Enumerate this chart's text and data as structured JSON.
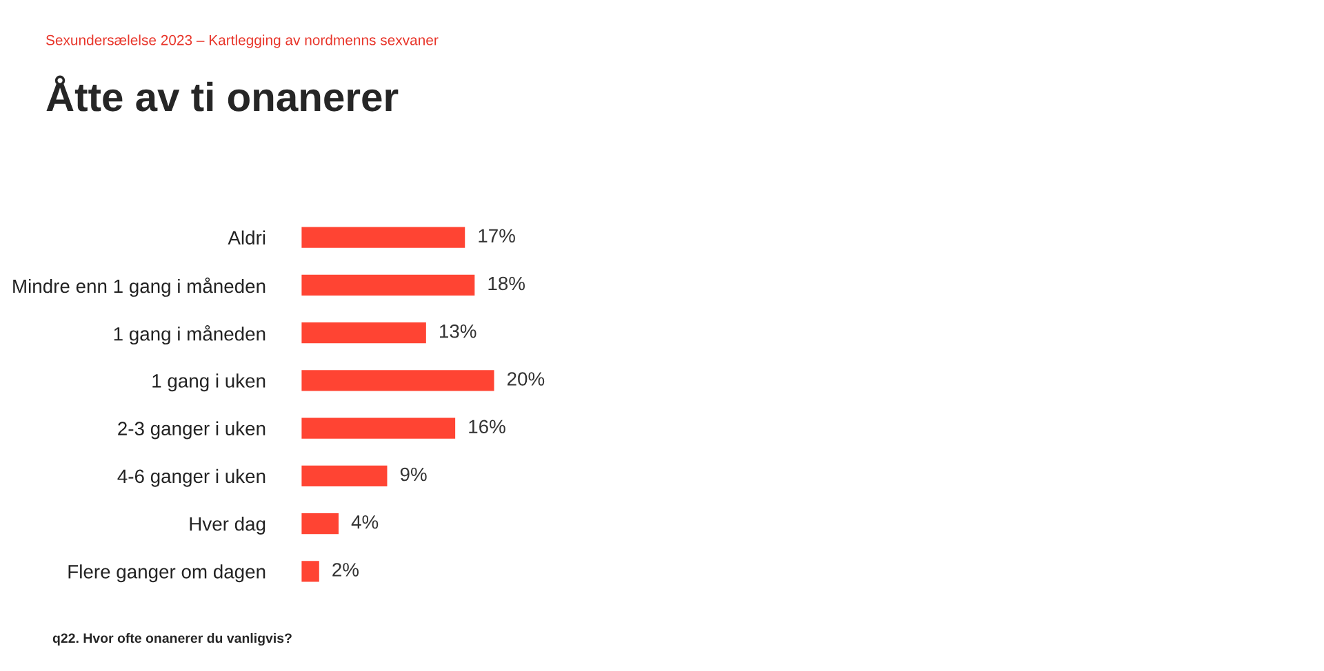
{
  "chart_data": {
    "type": "bar",
    "orientation": "horizontal",
    "subtitle": "Sexundersælelse 2023 – Kartlegging av nordmenns sexvaner",
    "title": "Åtte av ti onanerer",
    "categories": [
      "Aldri",
      "Mindre enn 1 gang i måneden",
      "1 gang i måneden",
      "1 gang i uken",
      "2-3 ganger i uken",
      "4-6 ganger i uken",
      "Hver dag",
      "Flere ganger om dagen"
    ],
    "values": [
      17,
      18,
      13,
      20,
      16,
      9,
      4,
      2
    ],
    "value_labels": [
      "17%",
      "18%",
      "13%",
      "20%",
      "16%",
      "9%",
      "4%",
      "2%"
    ],
    "color": "#ff4433",
    "annotations": [
      "q22. Hvor ofte onanerer du vanligvis?"
    ],
    "grid": false,
    "legend": false
  }
}
